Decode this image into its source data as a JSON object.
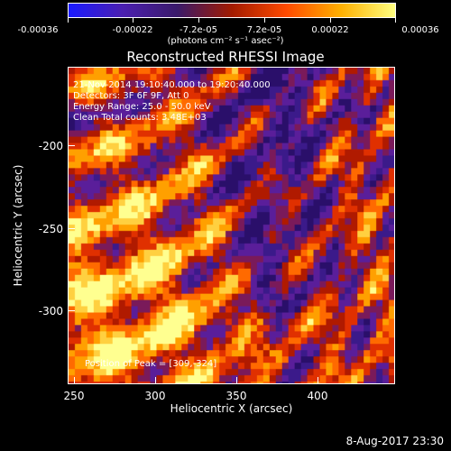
{
  "colorbar": {
    "tick_labels": [
      "-0.00036",
      "-0.00022",
      "-7.2e-05",
      "7.2e-05",
      "0.00022",
      "0.00036"
    ],
    "units_label": "(photons cm⁻² s⁻¹ asec⁻²)",
    "colors": [
      "#1a1aff",
      "#4b1fb0",
      "#3a1a6a",
      "#a21b00",
      "#ff4a00",
      "#ffb000",
      "#ffff80"
    ]
  },
  "title": "Reconstructed RHESSI Image",
  "info": {
    "time_range": "21-Nov-2014 19:10:40.000 to 19:20:40.000",
    "detectors": "Detectors: 3F 6F 9F, Att 0",
    "energy": "Energy Range: 25.0 - 50.0 keV",
    "clean": "Clean     Total counts: 3.48E+03",
    "peak": "Position of Peak = [309,-324]"
  },
  "axes": {
    "xlabel": "Heliocentric X (arcsec)",
    "ylabel": "Heliocentric Y (arcsec)",
    "xticks": [
      "250",
      "300",
      "350",
      "400"
    ],
    "yticks": [
      "-200",
      "-250",
      "-300"
    ]
  },
  "footer": "8-Aug-2017 23:30"
}
